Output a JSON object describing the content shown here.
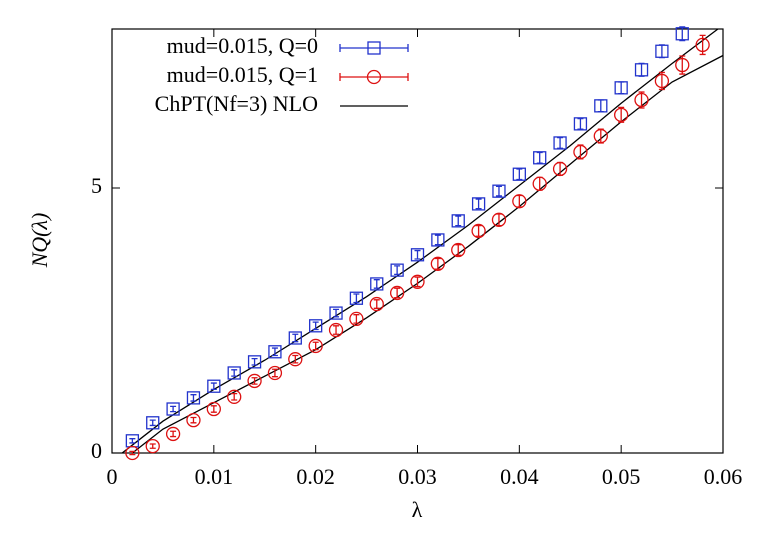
{
  "chart_data": {
    "type": "scatter",
    "xlabel": "λ",
    "ylabel": "NQ(λ)",
    "xlim": [
      0,
      0.06
    ],
    "ylim": [
      0,
      8
    ],
    "xticks": [
      0,
      0.01,
      0.02,
      0.03,
      0.04,
      0.05,
      0.06
    ],
    "yticks": [
      0,
      5
    ],
    "series": [
      {
        "name": "mud=0.015, Q=0",
        "color": "#2233cc",
        "marker": "square",
        "x": [
          0.002,
          0.004,
          0.006,
          0.008,
          0.01,
          0.012,
          0.014,
          0.016,
          0.018,
          0.02,
          0.022,
          0.024,
          0.026,
          0.028,
          0.03,
          0.032,
          0.034,
          0.036,
          0.038,
          0.04,
          0.042,
          0.044,
          0.046,
          0.048,
          0.05,
          0.052,
          0.054,
          0.056
        ],
        "values": [
          0.23,
          0.57,
          0.83,
          1.04,
          1.26,
          1.51,
          1.72,
          1.91,
          2.17,
          2.4,
          2.64,
          2.92,
          3.19,
          3.45,
          3.74,
          4.02,
          4.38,
          4.7,
          4.94,
          5.26,
          5.57,
          5.85,
          6.21,
          6.55,
          6.89,
          7.23,
          7.58,
          7.91
        ],
        "errors": [
          0.04,
          0.05,
          0.05,
          0.06,
          0.06,
          0.06,
          0.06,
          0.07,
          0.07,
          0.07,
          0.07,
          0.08,
          0.08,
          0.08,
          0.08,
          0.09,
          0.09,
          0.09,
          0.09,
          0.1,
          0.1,
          0.1,
          0.1,
          0.11,
          0.11,
          0.12,
          0.12,
          0.13
        ]
      },
      {
        "name": "mud=0.015, Q=1",
        "color": "#dd1111",
        "marker": "circle",
        "x": [
          0.002,
          0.004,
          0.006,
          0.008,
          0.01,
          0.012,
          0.014,
          0.016,
          0.018,
          0.02,
          0.022,
          0.024,
          0.026,
          0.028,
          0.03,
          0.032,
          0.034,
          0.036,
          0.038,
          0.04,
          0.042,
          0.044,
          0.046,
          0.048,
          0.05,
          0.052,
          0.054,
          0.056,
          0.058
        ],
        "values": [
          0.0,
          0.13,
          0.36,
          0.62,
          0.83,
          1.06,
          1.36,
          1.51,
          1.77,
          2.02,
          2.32,
          2.53,
          2.81,
          3.02,
          3.23,
          3.57,
          3.83,
          4.19,
          4.4,
          4.75,
          5.08,
          5.36,
          5.68,
          5.98,
          6.38,
          6.66,
          7.02,
          7.32,
          7.7
        ],
        "errors": [
          0.03,
          0.04,
          0.05,
          0.05,
          0.06,
          0.06,
          0.06,
          0.07,
          0.07,
          0.07,
          0.08,
          0.08,
          0.08,
          0.09,
          0.09,
          0.1,
          0.1,
          0.1,
          0.11,
          0.11,
          0.12,
          0.12,
          0.13,
          0.13,
          0.14,
          0.15,
          0.16,
          0.17,
          0.18
        ]
      }
    ],
    "curve": {
      "name": "ChPT(Nf=3) NLO",
      "color": "#000000",
      "lines": [
        {
          "x": [
            0.001,
            0.005,
            0.01,
            0.015,
            0.02,
            0.025,
            0.03,
            0.035,
            0.04,
            0.045,
            0.05,
            0.055,
            0.0595
          ],
          "y": [
            0,
            0.6,
            1.2,
            1.75,
            2.35,
            2.95,
            3.6,
            4.3,
            5.05,
            5.8,
            6.6,
            7.35,
            8.0
          ]
        },
        {
          "x": [
            0.002,
            0.005,
            0.01,
            0.015,
            0.02,
            0.025,
            0.03,
            0.035,
            0.04,
            0.045,
            0.05,
            0.055,
            0.06
          ],
          "y": [
            0,
            0.45,
            0.95,
            1.45,
            1.95,
            2.55,
            3.2,
            3.9,
            4.65,
            5.45,
            6.25,
            7.0,
            7.5
          ]
        }
      ]
    }
  }
}
